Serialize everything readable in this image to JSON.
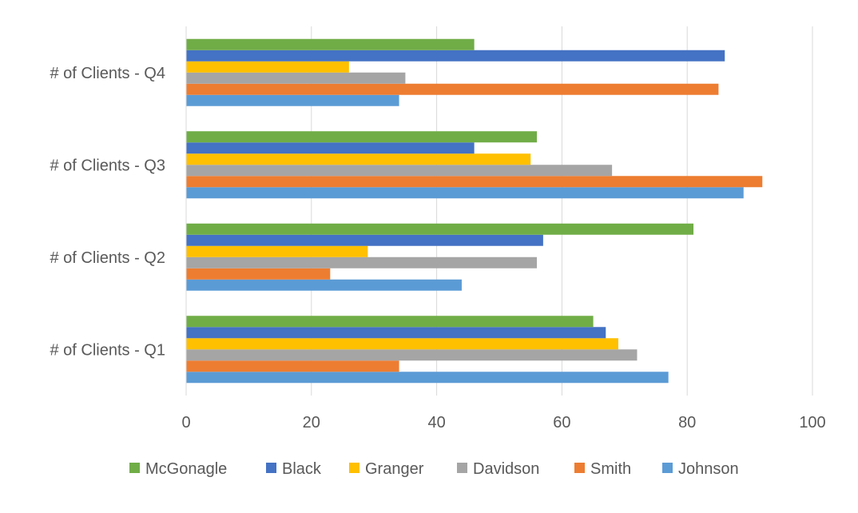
{
  "chart_data": {
    "type": "bar",
    "orientation": "horizontal",
    "categories": [
      "# of Clients - Q1",
      "# of Clients - Q2",
      "# of Clients - Q3",
      "# of Clients - Q4"
    ],
    "series": [
      {
        "name": "Johnson",
        "color": "#5B9BD5",
        "values": [
          77,
          44,
          89,
          34
        ]
      },
      {
        "name": "Smith",
        "color": "#ED7D31",
        "values": [
          34,
          23,
          92,
          85
        ]
      },
      {
        "name": "Davidson",
        "color": "#A5A5A5",
        "values": [
          72,
          56,
          68,
          35
        ]
      },
      {
        "name": "Granger",
        "color": "#FFC000",
        "values": [
          69,
          29,
          55,
          26
        ]
      },
      {
        "name": "Black",
        "color": "#4472C4",
        "values": [
          67,
          57,
          46,
          86
        ]
      },
      {
        "name": "McGonagle",
        "color": "#70AD47",
        "values": [
          65,
          81,
          56,
          46
        ]
      }
    ],
    "legend_order": [
      "McGonagle",
      "Black",
      "Granger",
      "Davidson",
      "Smith",
      "Johnson"
    ],
    "xlim": [
      0,
      100
    ],
    "x_ticks": [
      0,
      20,
      40,
      60,
      80,
      100
    ],
    "grid": true,
    "legend_position": "bottom"
  }
}
